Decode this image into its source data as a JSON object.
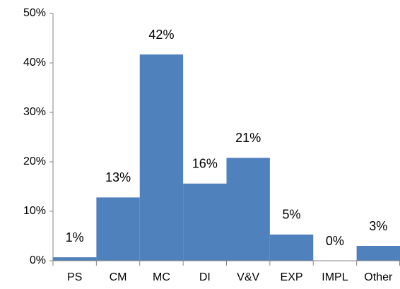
{
  "chart_data": {
    "type": "bar",
    "categories": [
      "PS",
      "CM",
      "MC",
      "DI",
      "V&V",
      "EXP",
      "IMPL",
      "Other"
    ],
    "values": [
      0.7,
      12.8,
      41.7,
      15.6,
      20.8,
      5.3,
      0,
      3
    ],
    "value_labels": [
      "1%",
      "13%",
      "42%",
      "16%",
      "21%",
      "5%",
      "0%",
      "3%"
    ],
    "color": "#4f81bd",
    "ylim": [
      0,
      50
    ],
    "yticks": [
      {
        "value": 0,
        "label": "0%"
      },
      {
        "value": 10,
        "label": "10%"
      },
      {
        "value": 20,
        "label": "20%"
      },
      {
        "value": 30,
        "label": "30%"
      },
      {
        "value": 40,
        "label": "40%"
      },
      {
        "value": 50,
        "label": "50%"
      }
    ],
    "grid": false
  }
}
